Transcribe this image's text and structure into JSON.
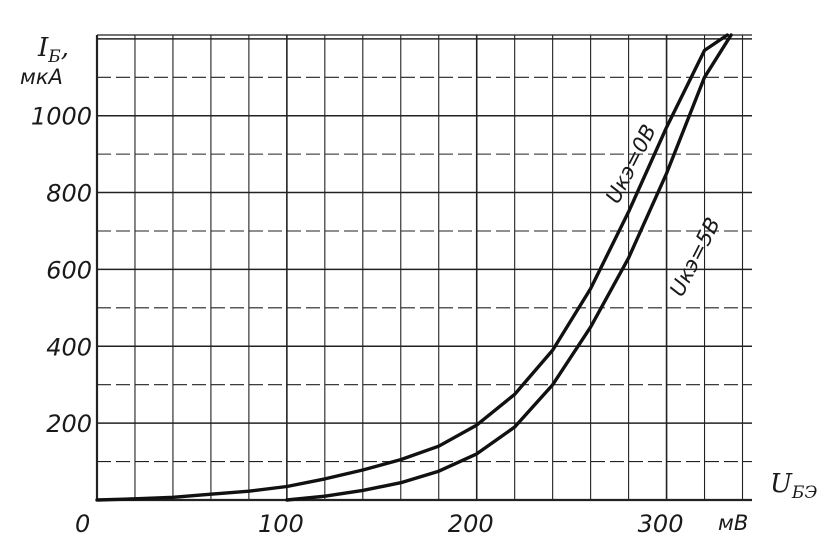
{
  "chart_data": {
    "type": "line",
    "ylabel": "I",
    "ylabel_sub": "Б",
    "ylabel_suffix": ",",
    "yunit": "мкА",
    "xlabel": "U",
    "xlabel_sub": "БЭ",
    "xunit": "мВ",
    "xlim": [
      0,
      345
    ],
    "ylim": [
      0,
      1210
    ],
    "grid": true,
    "x_ticks": [
      {
        "value": 0,
        "label": "0"
      },
      {
        "value": 100,
        "label": "100"
      },
      {
        "value": 200,
        "label": "200"
      },
      {
        "value": 300,
        "label": "300"
      }
    ],
    "y_ticks": [
      {
        "value": 200,
        "label": "200"
      },
      {
        "value": 400,
        "label": "400"
      },
      {
        "value": 600,
        "label": "600"
      },
      {
        "value": 800,
        "label": "800"
      },
      {
        "value": 1000,
        "label": "1000"
      }
    ],
    "series": [
      {
        "name": "Uкэ=0В",
        "x": [
          0,
          20,
          40,
          60,
          80,
          100,
          120,
          140,
          160,
          180,
          200,
          220,
          240,
          260,
          280,
          300,
          320,
          332
        ],
        "y": [
          0,
          3,
          7,
          15,
          23,
          35,
          55,
          78,
          105,
          140,
          195,
          275,
          390,
          550,
          750,
          970,
          1170,
          1210
        ]
      },
      {
        "name": "Uкэ=5В",
        "x": [
          100,
          120,
          140,
          160,
          180,
          200,
          220,
          240,
          260,
          280,
          300,
          320,
          334
        ],
        "y": [
          0,
          10,
          25,
          45,
          75,
          120,
          190,
          300,
          450,
          630,
          850,
          1100,
          1210
        ]
      }
    ]
  }
}
